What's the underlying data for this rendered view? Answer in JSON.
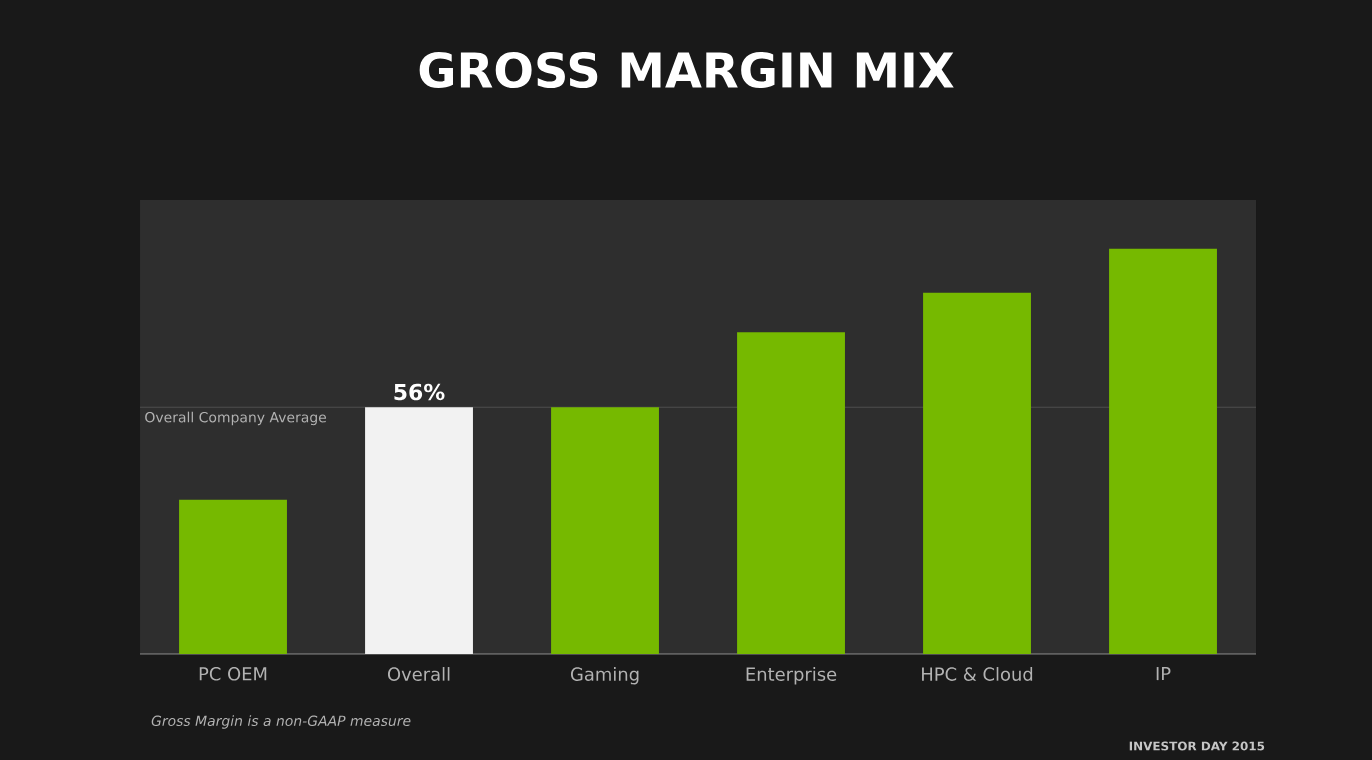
{
  "chart_data": {
    "type": "bar",
    "title": "GROSS MARGIN MIX",
    "categories": [
      "PC OEM",
      "Overall",
      "Gaming",
      "Enterprise",
      "HPC & Cloud",
      "IP"
    ],
    "values": [
      35,
      56,
      56,
      73,
      82,
      92
    ],
    "colors": [
      "#76b900",
      "#f2f2f2",
      "#76b900",
      "#76b900",
      "#76b900",
      "#76b900"
    ],
    "value_labels": [
      null,
      "56%",
      null,
      null,
      null,
      null
    ],
    "ref_lines": [
      {
        "axis": "y",
        "value": 56,
        "label": "Overall Company Average",
        "color": "#555555"
      }
    ],
    "annotations": [
      "Gross Margin is a non-GAAP measure",
      "INVESTOR DAY 2015"
    ]
  }
}
